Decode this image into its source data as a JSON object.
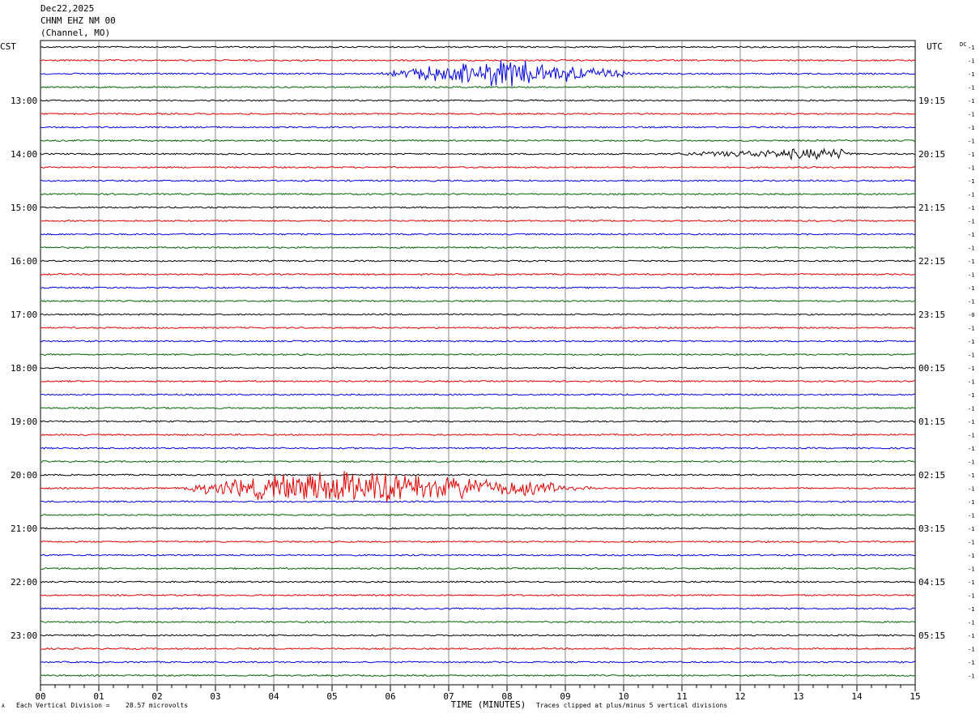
{
  "header": {
    "date": "Dec22,2025",
    "station": "CHNM EHZ NM 00",
    "location": "(Channel, MO)"
  },
  "footer": {
    "scale_label": "Each Vertical Division =",
    "scale_value": "28.57 microvolts",
    "clip_note": "Traces clipped at plus/minus 5 vertical divisions",
    "corner_mark": "A"
  },
  "chart_data": {
    "type": "line",
    "left_timezone": "CST",
    "right_timezone": "UTC",
    "xlabel": "TIME (MINUTES)",
    "xlim": [
      0,
      15
    ],
    "x_tick_labels": [
      "00",
      "01",
      "02",
      "03",
      "04",
      "05",
      "06",
      "07",
      "08",
      "09",
      "10",
      "11",
      "12",
      "13",
      "14",
      "15"
    ],
    "trace_interval_minutes": 15,
    "trace_count": 48,
    "trace_colors": [
      "#000000",
      "#e00000",
      "#0000e0",
      "#006400"
    ],
    "left_hour_labels": [
      "13:00",
      "14:00",
      "15:00",
      "16:00",
      "17:00",
      "18:00",
      "19:00",
      "20:00",
      "21:00",
      "22:00",
      "23:00"
    ],
    "right_hour_labels": [
      "19:15",
      "20:15",
      "21:15",
      "22:15",
      "23:15",
      "00:15",
      "01:15",
      "02:15",
      "03:15",
      "04:15",
      "05:15"
    ],
    "dc_label": "DC",
    "dc_offsets": [
      "-1",
      "-1",
      "-1",
      "-1",
      "-1",
      "-1",
      "-1",
      "-1",
      "-1",
      "-1",
      "-1",
      "-1",
      "-1",
      "-1",
      "-1",
      "-1",
      "-1",
      "-1",
      "-1",
      "-1",
      "-0",
      "-1",
      "-1",
      "-1",
      "-1",
      "-1",
      "-1",
      "-1",
      "-1",
      "-1",
      "-1",
      "-1",
      "-1",
      "-1",
      "-1",
      "-1",
      "-1",
      "-1",
      "-1",
      "-1",
      "-1",
      "-1",
      "-1",
      "-1",
      "-1",
      "-1",
      "-1",
      "-1"
    ],
    "events": [
      {
        "trace": 2,
        "start_min": 5.8,
        "end_min": 10.2,
        "peak_min": 7.9,
        "amplitude": 1.2
      },
      {
        "trace": 8,
        "start_min": 10.8,
        "end_min": 14.0,
        "peak_min": 13.6,
        "amplitude": 0.5
      },
      {
        "trace": 33,
        "start_min": 2.3,
        "end_min": 9.5,
        "peak_min": 5.3,
        "amplitude": 1.6
      }
    ]
  }
}
